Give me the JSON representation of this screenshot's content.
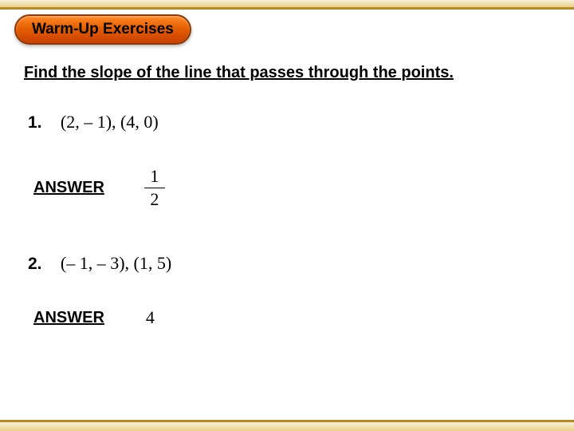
{
  "theme": {
    "pill_gradient_top": "#ff8a2a",
    "pill_gradient_mid": "#e55f00",
    "pill_gradient_bottom": "#c93e00",
    "pill_border": "#8a3b0a",
    "bar_gradient_top": "#f9f2db",
    "bar_gradient_bottom": "#e8d088",
    "bar_border": "#b88928",
    "text_color": "#000000",
    "background": "#ffffff"
  },
  "title": "Warm-Up Exercises",
  "instruction": "Find the slope of the line that passes through the points.",
  "problems": [
    {
      "number": "1.",
      "points_text": "(2, – 1), (4, 0)",
      "answer_label": "ANSWER",
      "answer": {
        "type": "fraction",
        "numerator": "1",
        "denominator": "2"
      }
    },
    {
      "number": "2.",
      "points_text": "(– 1, – 3), (1, 5)",
      "answer_label": "ANSWER",
      "answer": {
        "type": "integer",
        "value": "4"
      }
    }
  ]
}
